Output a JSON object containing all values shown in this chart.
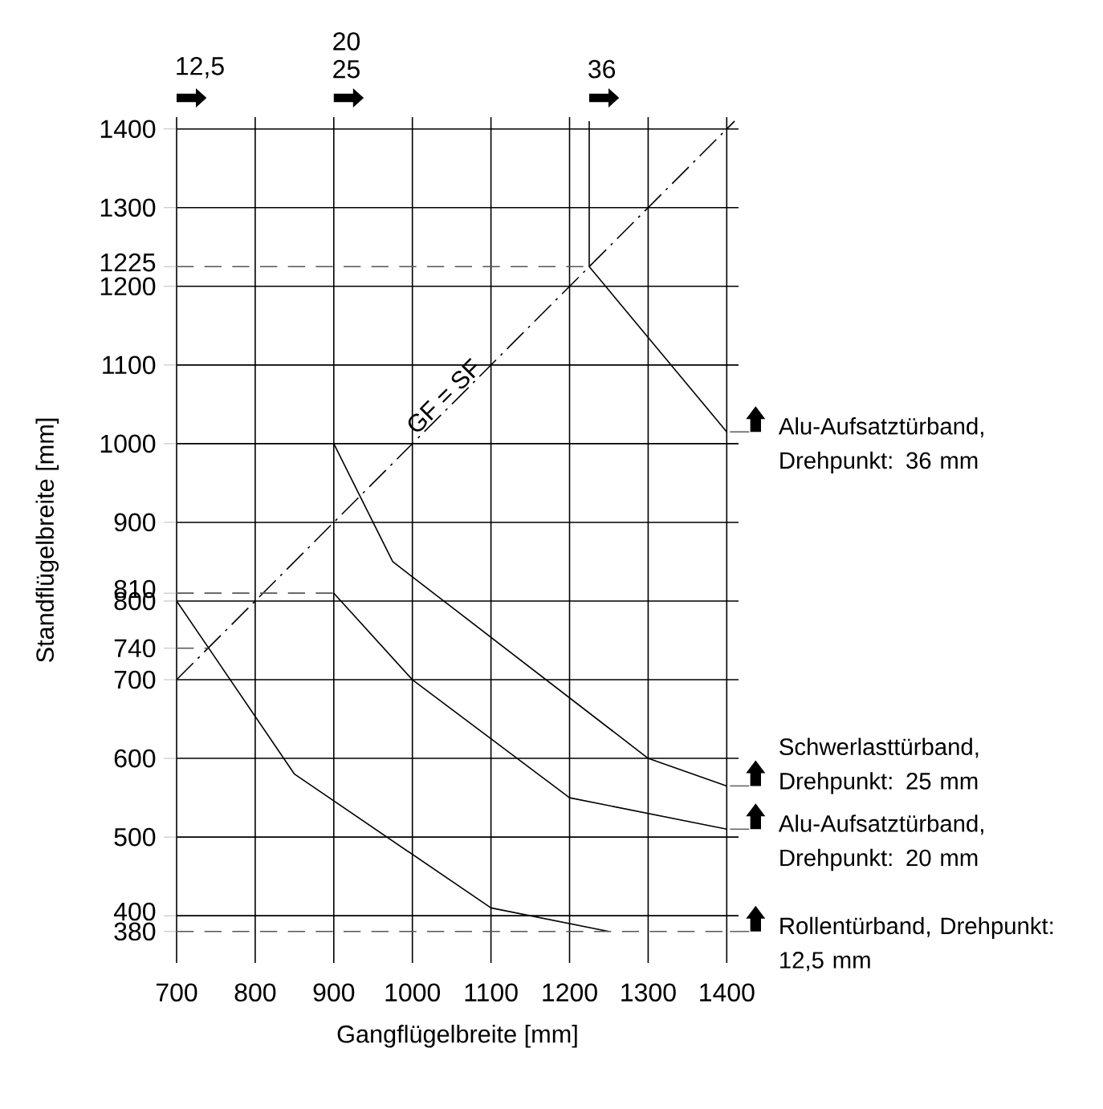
{
  "chart_data": {
    "type": "line",
    "xlabel": "Gangflügelbreite [mm]",
    "ylabel": "Standflügelbreite [mm]",
    "xlim": [
      700,
      1415
    ],
    "ylim": [
      340,
      1415
    ],
    "xticks": [
      700,
      800,
      900,
      1000,
      1100,
      1200,
      1300,
      1400
    ],
    "yticks": [
      380,
      400,
      500,
      600,
      700,
      740,
      800,
      810,
      900,
      1000,
      1100,
      1200,
      1225,
      1300,
      1400
    ],
    "grid": true,
    "marker": "none",
    "annotations": [
      {
        "text": "GF = SF",
        "x": 1050,
        "y": 1050
      },
      "12,5",
      "20",
      "25",
      "36"
    ],
    "legend": "right",
    "series": [
      {
        "name": "Rollentürband, Drehpunkt: 12,5 mm",
        "color": "#000000",
        "x": [
          700,
          850,
          1100,
          1250
        ],
        "values": [
          800,
          580,
          410,
          380
        ]
      },
      {
        "name": "Alu-Aufsatztürband, Drehpunkt: 20 mm",
        "color": "#000000",
        "x": [
          900,
          1000,
          1200,
          1400
        ],
        "values": [
          810,
          700,
          550,
          510
        ]
      },
      {
        "name": "Schwerlasttürband, Drehpunkt: 25 mm",
        "color": "#000000",
        "x": [
          900,
          975,
          1300,
          1400
        ],
        "values": [
          1000,
          850,
          600,
          565
        ]
      },
      {
        "name": "Alu-Aufsatztürband, Drehpunkt: 36 mm",
        "color": "#000000",
        "x": [
          1225,
          1225,
          1400
        ],
        "values": [
          1410,
          1225,
          1015
        ]
      },
      {
        "color": "#000000",
        "line_style": "dashdot",
        "x": [
          700,
          1410
        ],
        "values": [
          700,
          1410
        ]
      },
      {
        "color": "#555555",
        "line_style": "dashed",
        "x": [
          700,
          1400
        ],
        "values": [
          380,
          380
        ]
      },
      {
        "color": "#555555",
        "line_style": "dashed",
        "x": [
          700,
          1225
        ],
        "values": [
          1225,
          1225
        ]
      },
      {
        "color": "#555555",
        "line_style": "dashed",
        "x": [
          700,
          900
        ],
        "values": [
          810,
          810
        ]
      },
      {
        "color": "#555555",
        "line_style": "dashed",
        "x": [
          700,
          740
        ],
        "values": [
          740,
          740
        ]
      }
    ]
  }
}
